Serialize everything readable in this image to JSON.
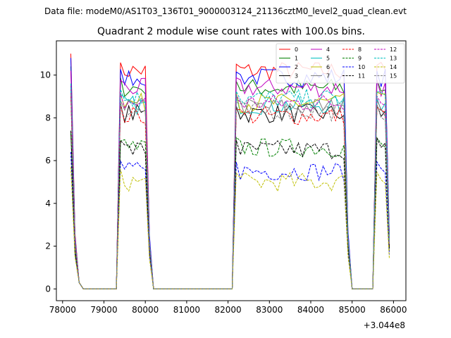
{
  "header": {
    "file_label": "Data file: modeM0/AS1T03_136T01_9000003124_21136cztM0_level2_quad_clean.evt"
  },
  "chart_data": {
    "type": "line",
    "title": "Quadrant 2 module wise count rates with 100.0s bins.",
    "xlabel": "",
    "ylabel": "",
    "x_offset_label": "+3.044e8",
    "xlim": [
      77850,
      86300
    ],
    "ylim": [
      -0.55,
      11.6
    ],
    "xticks": [
      78000,
      79000,
      80000,
      81000,
      82000,
      83000,
      84000,
      85000,
      86000
    ],
    "xtick_labels": [
      "78000",
      "79000",
      "80000",
      "81000",
      "82000",
      "83000",
      "84000",
      "85000",
      "86000"
    ],
    "yticks": [
      0,
      2,
      4,
      6,
      8,
      10
    ],
    "ytick_labels": [
      "0",
      "2",
      "4",
      "6",
      "8",
      "10"
    ],
    "grid": false,
    "legend": {
      "placement": "top-right",
      "columns": 4
    },
    "x": [
      78200,
      78300,
      78400,
      78500,
      78600,
      78700,
      78800,
      78900,
      79000,
      79100,
      79200,
      79300,
      79400,
      79500,
      79600,
      79700,
      79800,
      79900,
      80000,
      80100,
      80200,
      80300,
      80400,
      80500,
      80600,
      80700,
      80800,
      80900,
      81000,
      81100,
      81200,
      81300,
      81400,
      81500,
      81600,
      81700,
      81800,
      81900,
      82000,
      82100,
      82200,
      82300,
      82400,
      82500,
      82600,
      82700,
      82800,
      82900,
      83000,
      83100,
      83200,
      83300,
      83400,
      83500,
      83600,
      83700,
      83800,
      83900,
      84000,
      84100,
      84200,
      84300,
      84400,
      84500,
      84600,
      84700,
      84800,
      84900,
      85000,
      85100,
      85200,
      85300,
      85400,
      85500,
      85600,
      85700,
      85800,
      85900
    ],
    "series": [
      {
        "name": "0",
        "color": "#ff0000",
        "dash": "solid",
        "level": 10.2,
        "ramp": [
          11.0,
          2.6,
          10.5,
          2.4
        ]
      },
      {
        "name": "1",
        "color": "#008000",
        "dash": "solid",
        "level": 9.4,
        "ramp": [
          10.4,
          2.4,
          9.8,
          2.2
        ]
      },
      {
        "name": "2",
        "color": "#0000ff",
        "dash": "solid",
        "level": 9.9,
        "ramp": [
          10.8,
          2.5,
          10.2,
          2.5
        ]
      },
      {
        "name": "3",
        "color": "#000000",
        "dash": "solid",
        "level": 8.2,
        "ramp": [
          9.2,
          2.2,
          8.6,
          2.0
        ]
      },
      {
        "name": "4",
        "color": "#bf00bf",
        "dash": "solid",
        "level": 9.4,
        "ramp": [
          10.2,
          2.4,
          9.8,
          2.3
        ]
      },
      {
        "name": "5",
        "color": "#00bfbf",
        "dash": "solid",
        "level": 8.6,
        "ramp": [
          9.4,
          2.2,
          9.0,
          2.2
        ]
      },
      {
        "name": "6",
        "color": "#bfbf00",
        "dash": "solid",
        "level": 8.7,
        "ramp": [
          9.6,
          2.3,
          9.2,
          2.1
        ]
      },
      {
        "name": "7",
        "color": "#808080",
        "dash": "solid",
        "level": 8.5,
        "ramp": [
          9.3,
          2.2,
          8.9,
          2.1
        ]
      },
      {
        "name": "8",
        "color": "#ff0000",
        "dash": "dashed",
        "level": 8.1,
        "ramp": [
          9.0,
          2.1,
          8.5,
          2.0
        ]
      },
      {
        "name": "9",
        "color": "#008000",
        "dash": "dashed",
        "level": 6.6,
        "ramp": [
          7.3,
          1.8,
          7.0,
          1.8
        ]
      },
      {
        "name": "10",
        "color": "#0000ff",
        "dash": "dashed",
        "level": 5.5,
        "ramp": [
          6.4,
          1.6,
          6.0,
          1.6
        ]
      },
      {
        "name": "11",
        "color": "#000000",
        "dash": "dashed",
        "level": 6.5,
        "ramp": [
          7.4,
          1.8,
          7.0,
          1.8
        ]
      },
      {
        "name": "12",
        "color": "#bf00bf",
        "dash": "dashed",
        "level": 8.7,
        "ramp": [
          9.5,
          2.2,
          9.1,
          2.1
        ]
      },
      {
        "name": "13",
        "color": "#00bfbf",
        "dash": "dashed",
        "level": 8.9,
        "ramp": [
          9.6,
          2.3,
          9.3,
          2.2
        ]
      },
      {
        "name": "14",
        "color": "#bfbf00",
        "dash": "dashed",
        "level": 5.0,
        "ramp": [
          5.7,
          1.5,
          5.5,
          1.4
        ]
      },
      {
        "name": "15",
        "color": "#808080",
        "dash": "dashed",
        "level": 8.3,
        "ramp": [
          9.1,
          2.2,
          8.7,
          2.1
        ]
      }
    ],
    "segments": [
      {
        "from": 79400,
        "to": 80000
      },
      {
        "from": 82200,
        "to": 84800
      },
      {
        "from": 85600,
        "to": 85800
      }
    ]
  }
}
